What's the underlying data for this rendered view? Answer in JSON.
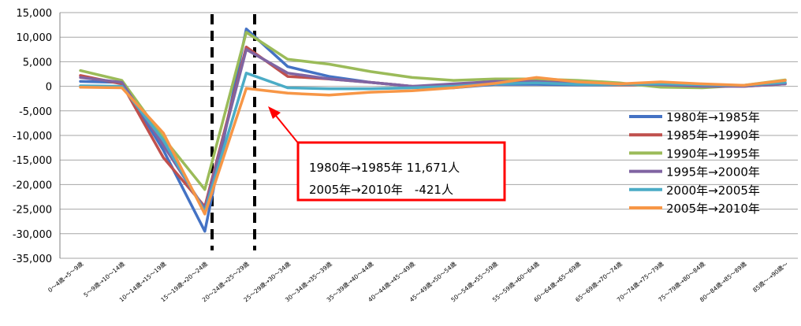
{
  "chart_data": {
    "type": "line",
    "title": "",
    "xlabel": "",
    "ylabel": "",
    "ylim": [
      -35000,
      15000
    ],
    "yticks": [
      15000,
      10000,
      5000,
      0,
      -5000,
      -10000,
      -15000,
      -20000,
      -25000,
      -30000,
      -35000
    ],
    "ytick_labels": [
      "15,000",
      "10,000",
      "5,000",
      "0",
      "-5,000",
      "-10,000",
      "-15,000",
      "-20,000",
      "-25,000",
      "-30,000",
      "-35,000"
    ],
    "grid": true,
    "legend_position": "right",
    "categories": [
      "0～4歳→5～9歳",
      "5～9歳→10～14歳",
      "10～14歳→15～19歳",
      "15～19歳→20～24歳",
      "20～24歳→25～29歳",
      "25～29歳→30～34歳",
      "30～34歳→35～39歳",
      "35～39歳→40～44歳",
      "40～44歳→45～49歳",
      "45～49歳→50～54歳",
      "50～54歳→55～59歳",
      "55～59歳→60～64歳",
      "60～64歳→65～69歳",
      "65～69歳→70～74歳",
      "70～74歳→75～79歳",
      "75～79歳→80～84歳",
      "80～84歳→85～89歳",
      "85歳～→90歳～"
    ],
    "series": [
      {
        "name": "1980年→1985年",
        "color": "#4472c4",
        "values": [
          1000,
          800,
          -13000,
          -29500,
          11671,
          4000,
          2000,
          800,
          0,
          -300,
          400,
          400,
          300,
          300,
          300,
          0,
          100,
          600
        ]
      },
      {
        "name": "1985年→1990年",
        "color": "#c0504d",
        "values": [
          2200,
          500,
          -14500,
          -24500,
          8000,
          2000,
          1500,
          800,
          0,
          0,
          800,
          1500,
          500,
          300,
          300,
          200,
          0,
          500
        ]
      },
      {
        "name": "1990年→1995年",
        "color": "#9bbb59",
        "values": [
          3200,
          1200,
          -10500,
          -21000,
          11000,
          5500,
          4500,
          3000,
          1800,
          1200,
          1500,
          1500,
          1200,
          700,
          -200,
          -300,
          200,
          1300
        ]
      },
      {
        "name": "1995年→2000年",
        "color": "#8064a2",
        "values": [
          1800,
          800,
          -12000,
          -25000,
          7500,
          2700,
          1500,
          800,
          0,
          500,
          1000,
          1000,
          500,
          500,
          300,
          0,
          0,
          500
        ]
      },
      {
        "name": "2000年→2005年",
        "color": "#4bacc6",
        "values": [
          100,
          0,
          -11000,
          -25500,
          2700,
          -300,
          -500,
          -500,
          -300,
          0,
          500,
          700,
          400,
          400,
          500,
          300,
          200,
          800
        ]
      },
      {
        "name": "2005年→2010年",
        "color": "#f79646",
        "values": [
          -200,
          -300,
          -9500,
          -26000,
          -421,
          -1400,
          -1800,
          -1200,
          -900,
          -300,
          600,
          1800,
          900,
          500,
          900,
          500,
          200,
          1200
        ]
      }
    ],
    "annotation": {
      "line1": "1980年→1985年 11,671人",
      "line2": "2005年→2010年　-421人"
    }
  }
}
